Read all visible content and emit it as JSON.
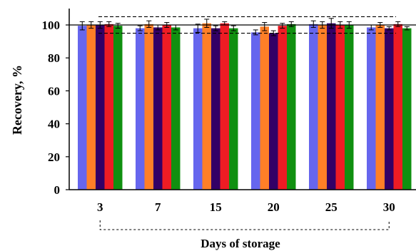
{
  "chart_data": {
    "type": "bar",
    "xlabel": "Days of storage",
    "ylabel": "Recovery, %",
    "categories": [
      "3",
      "7",
      "15",
      "20",
      "25",
      "30"
    ],
    "ylim": [
      0,
      105
    ],
    "yticks": [
      0,
      20,
      40,
      60,
      80,
      100
    ],
    "grid": false,
    "legend": "none",
    "reference_lines": {
      "solid": 100,
      "dashed_upper": 105,
      "dashed_lower": 95
    },
    "series": [
      {
        "color": "#6666ee",
        "values": [
          99.5,
          98.0,
          98.0,
          95.5,
          100.5,
          98.5
        ],
        "errors": [
          2.5,
          1.5,
          2.5,
          1.5,
          2.0,
          1.5
        ]
      },
      {
        "color": "#ff7f27",
        "values": [
          100.0,
          100.5,
          101.0,
          99.0,
          100.0,
          100.0
        ],
        "errors": [
          2.0,
          2.0,
          2.5,
          2.5,
          2.0,
          1.5
        ]
      },
      {
        "color": "#330066",
        "values": [
          100.0,
          98.5,
          98.0,
          95.0,
          101.0,
          98.0
        ],
        "errors": [
          2.0,
          1.5,
          1.5,
          1.5,
          3.0,
          1.0
        ]
      },
      {
        "color": "#ee1c24",
        "values": [
          100.5,
          100.0,
          101.0,
          99.5,
          100.0,
          100.5
        ],
        "errors": [
          1.5,
          1.5,
          1.0,
          1.5,
          2.0,
          1.5
        ]
      },
      {
        "color": "#109010",
        "values": [
          99.5,
          98.5,
          98.0,
          100.5,
          100.0,
          98.0
        ],
        "errors": [
          1.5,
          1.5,
          1.5,
          1.5,
          2.0,
          1.0
        ]
      }
    ]
  }
}
